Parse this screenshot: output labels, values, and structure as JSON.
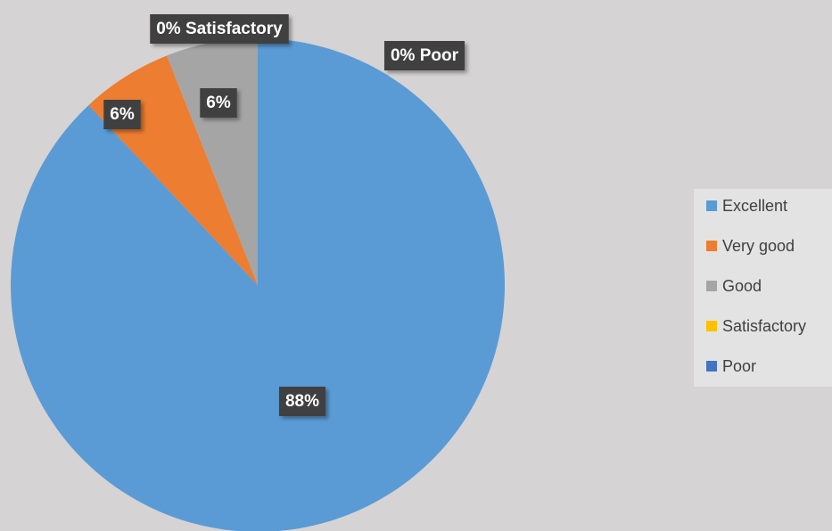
{
  "chart_data": {
    "type": "pie",
    "categories": [
      "Excellent",
      "Very good",
      "Good",
      "Satisfactory",
      "Poor"
    ],
    "values": [
      88,
      6,
      6,
      0,
      0
    ],
    "value_labels": [
      "88%",
      "6%",
      "6%",
      "0% Satisfactory",
      "0% Poor"
    ],
    "colors": [
      "#5b9bd5",
      "#ed7d31",
      "#a5a5a5",
      "#ffc000",
      "#4472c4"
    ],
    "legend": "right"
  }
}
